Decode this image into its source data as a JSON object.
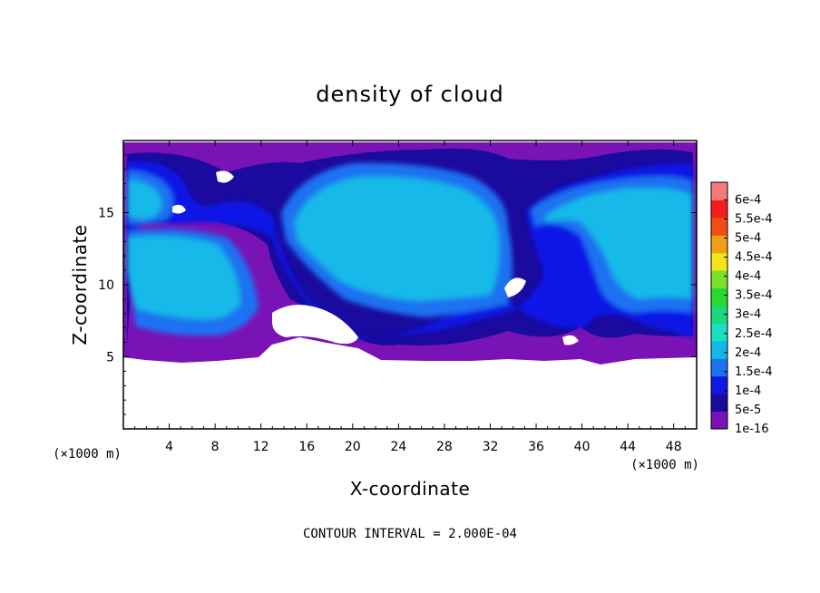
{
  "chart_data": {
    "type": "heatmap",
    "title": "density of cloud",
    "xlabel": "X-coordinate",
    "ylabel": "Z-coordinate",
    "x_unit": "(×1000 m)",
    "y_unit": "(×1000 m)",
    "xlim": [
      0,
      50
    ],
    "ylim": [
      0,
      20
    ],
    "x_ticks": [
      4,
      8,
      12,
      16,
      20,
      24,
      28,
      32,
      36,
      40,
      44,
      48
    ],
    "y_ticks": [
      5,
      10,
      15
    ],
    "grid": false,
    "colorbar": {
      "labels": [
        "1e-16",
        "5e-5",
        "1e-4",
        "1.5e-4",
        "2e-4",
        "2.5e-4",
        "3e-4",
        "3.5e-4",
        "4e-4",
        "4.5e-4",
        "5e-4",
        "5.5e-4",
        "6e-4"
      ],
      "colors": [
        "#7a13b5",
        "#1a0a9e",
        "#0f19e6",
        "#1d72f0",
        "#12b9e8",
        "#19e0c0",
        "#1ad97a",
        "#2ad92e",
        "#7ae02a",
        "#f0e61a",
        "#f0a014",
        "#f04e14",
        "#f21e1e",
        "#f77a7a"
      ],
      "position": "right"
    },
    "field_regions": {
      "cloud_base_z": 5,
      "cloud_top_z": 20,
      "dominant_levels": [
        "1e-16",
        "5e-5",
        "1e-4",
        "1.5e-4",
        "2e-4"
      ]
    },
    "annotation": "CONTOUR INTERVAL = 2.000E-04"
  }
}
